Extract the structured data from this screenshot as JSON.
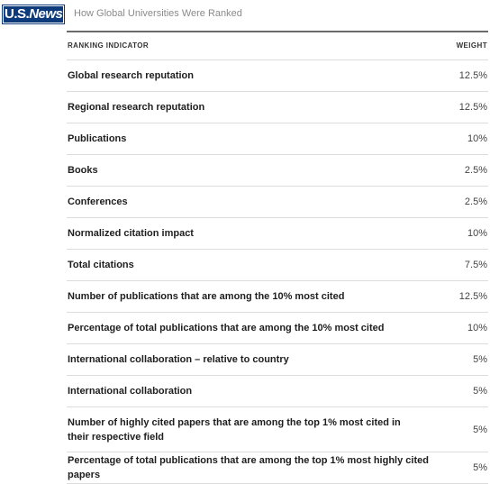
{
  "header": {
    "logo_text_us": "U.S.",
    "logo_text_news": "News",
    "title": "How Global Universities Were Ranked"
  },
  "table": {
    "col_indicator": "RANKING INDICATOR",
    "col_weight": "WEIGHT",
    "rows": [
      {
        "indicator": "Global research reputation",
        "weight": "12.5%"
      },
      {
        "indicator": "Regional research reputation",
        "weight": "12.5%"
      },
      {
        "indicator": "Publications",
        "weight": "10%"
      },
      {
        "indicator": "Books",
        "weight": "2.5%"
      },
      {
        "indicator": "Conferences",
        "weight": "2.5%"
      },
      {
        "indicator": "Normalized citation impact",
        "weight": "10%"
      },
      {
        "indicator": "Total citations",
        "weight": "7.5%"
      },
      {
        "indicator": "Number of publications that are among the 10% most cited",
        "weight": "12.5%"
      },
      {
        "indicator": "Percentage of total publications that are among the 10% most cited",
        "weight": "10%"
      },
      {
        "indicator": "International collaboration – relative to country",
        "weight": "5%"
      },
      {
        "indicator": "International collaboration",
        "weight": "5%"
      },
      {
        "indicator": "Number of highly cited papers that are among the top 1% most cited in their respective field",
        "weight": "5%"
      },
      {
        "indicator": "Percentage of total publications that are among the top 1% most highly cited papers",
        "weight": "5%"
      }
    ]
  }
}
